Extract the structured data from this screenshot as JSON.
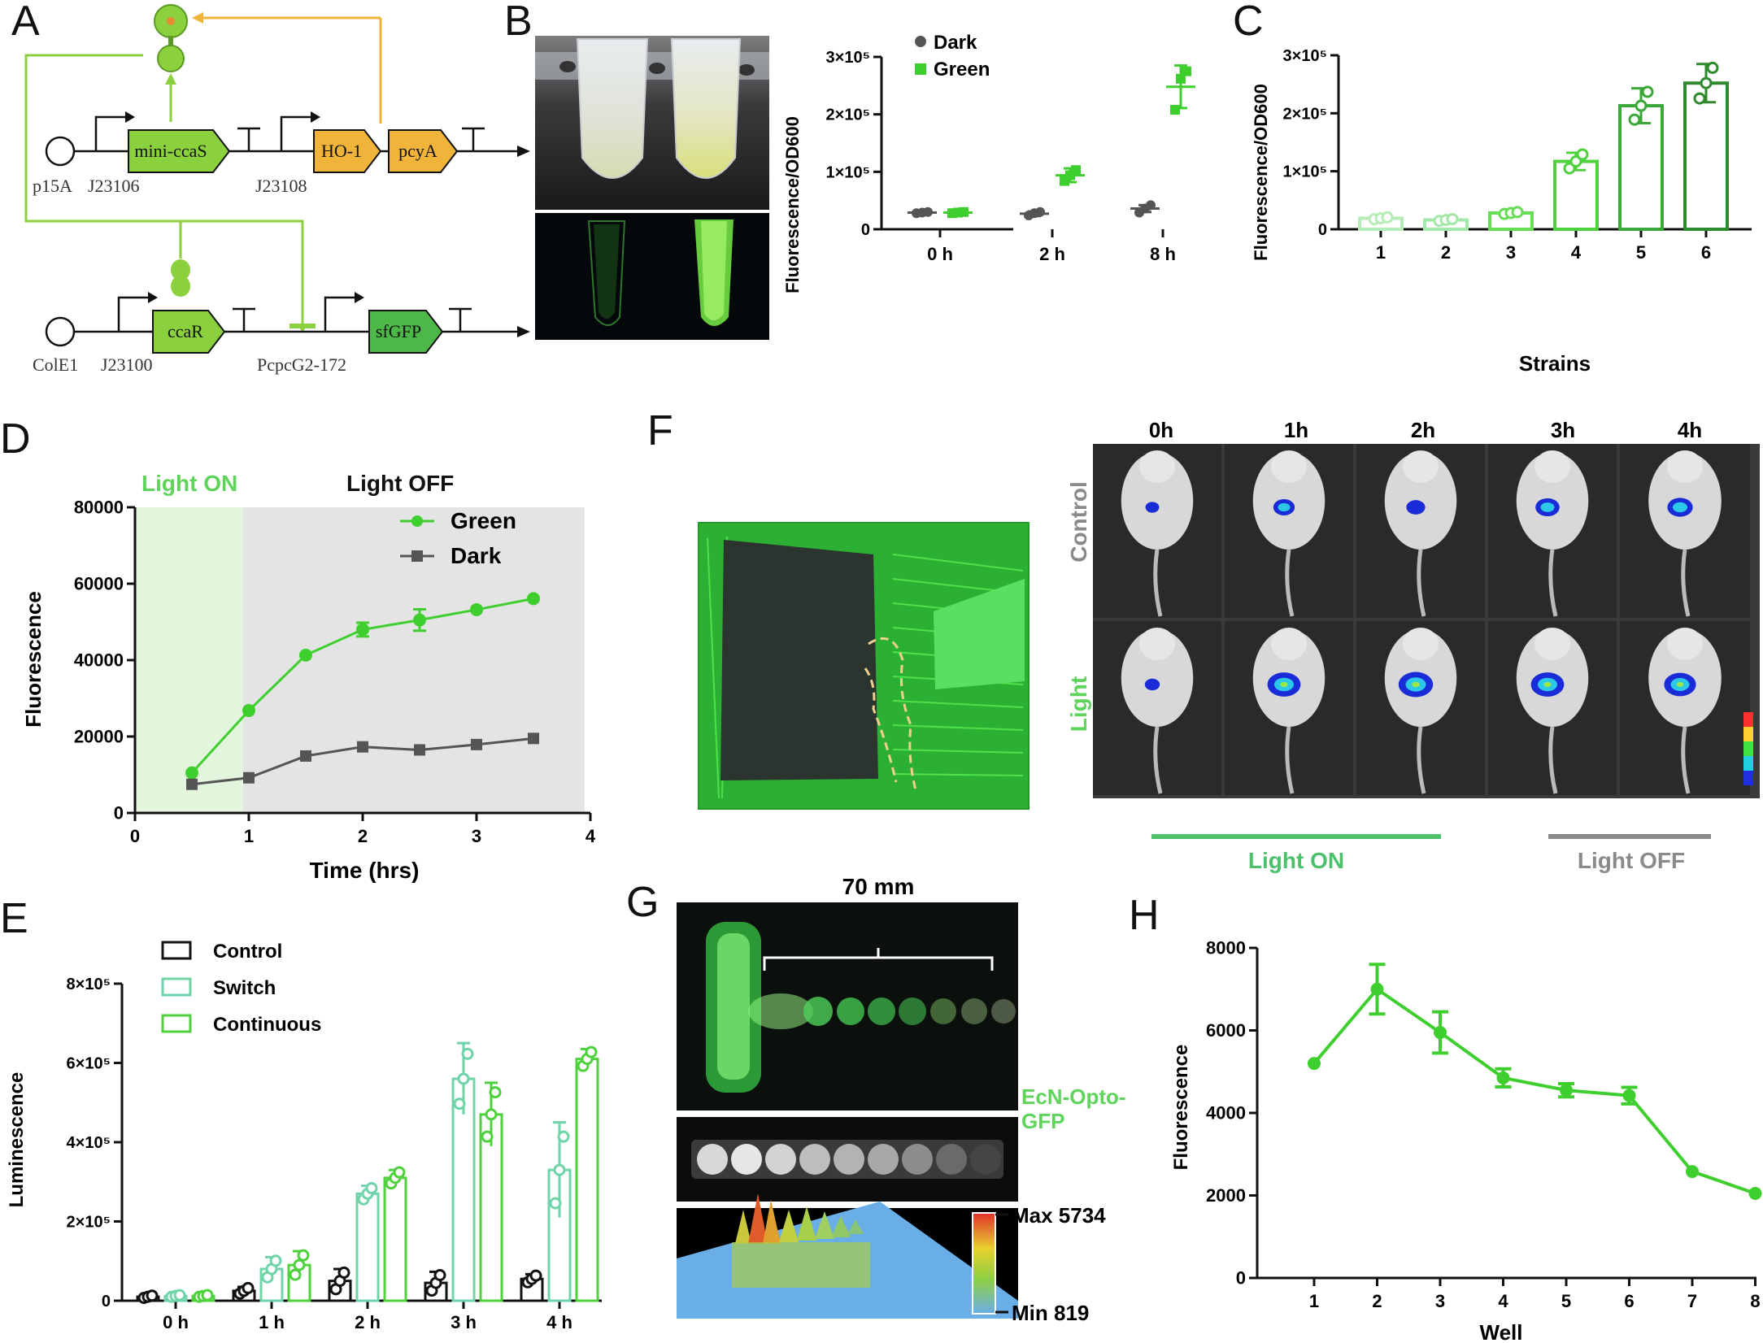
{
  "panels": {
    "A": {
      "letter": "A",
      "plasmid1": {
        "origin": "p15A",
        "promoter1": "J23106",
        "gene1": "mini-ccaS",
        "promoter2": "J23108",
        "gene2": "HO-1",
        "gene3": "pcyA"
      },
      "plasmid2": {
        "origin": "ColE1",
        "promoter1": "J23100",
        "gene1": "ccaR",
        "promoter2": "PcpcG2-172",
        "gene2": "sfGFP"
      },
      "colors": {
        "light_green": "#8bd13e",
        "orange": "#f0b43a",
        "dark_green": "#4cb847"
      }
    },
    "B": {
      "letter": "B",
      "chart_data": {
        "type": "scatter",
        "ylabel": "Fluorescence/OD600",
        "y_ticks": [
          "0",
          "1×10⁵",
          "2×10⁵",
          "3×10⁵"
        ],
        "ylim": [
          0,
          300000
        ],
        "categories": [
          "0 h",
          "2 h",
          "8 h"
        ],
        "series": [
          {
            "name": "Dark",
            "color": "#555555",
            "marker": "circle",
            "means": [
              29000,
              27000,
              36000
            ],
            "errors": [
              2000,
              4000,
              6000
            ],
            "points": [
              [
                28000,
                29000,
                30000
              ],
              [
                24000,
                28000,
                30000
              ],
              [
                29000,
                36000,
                42000
              ]
            ]
          },
          {
            "name": "Green",
            "color": "#3ecf2e",
            "marker": "square",
            "means": [
              29000,
              94000,
              248000
            ],
            "errors": [
              2000,
              12000,
              37000
            ],
            "points": [
              [
                28000,
                29000,
                30000
              ],
              [
                84000,
                94000,
                103000
              ],
              [
                208000,
                262000,
                275000
              ]
            ]
          }
        ]
      }
    },
    "C": {
      "letter": "C",
      "chart_data": {
        "type": "bar",
        "ylabel": "Fluorescence/OD600",
        "xlabel": "Strains",
        "y_ticks": [
          "0",
          "1×10⁵",
          "2×10⁵",
          "3×10⁵"
        ],
        "ylim": [
          0,
          300000
        ],
        "categories": [
          "1",
          "2",
          "3",
          "4",
          "5",
          "6"
        ],
        "values": [
          19000,
          16000,
          28000,
          117000,
          213000,
          252000
        ],
        "errors": [
          2000,
          2000,
          2000,
          15000,
          30000,
          33000
        ],
        "colors": [
          "#b6ecb8",
          "#a3e8a9",
          "#66dd54",
          "#4ed13d",
          "#3aa838",
          "#2e8a2c"
        ]
      }
    },
    "D": {
      "letter": "D",
      "light_on_label": "Light ON",
      "light_off_label": "Light OFF",
      "chart_data": {
        "type": "line",
        "xlabel": "Time (hrs)",
        "ylabel": "Fluorescence",
        "x_ticks": [
          "0",
          "1",
          "2",
          "3",
          "4"
        ],
        "y_ticks": [
          "0",
          "20000",
          "40000",
          "60000",
          "80000"
        ],
        "xlim": [
          0,
          4
        ],
        "ylim": [
          0,
          80000
        ],
        "x": [
          0.5,
          1,
          1.5,
          2,
          2.5,
          3,
          3.5
        ],
        "series": [
          {
            "name": "Green",
            "color": "#3ecf2e",
            "marker": "circle",
            "values": [
              10500,
              26800,
              41300,
              48000,
              50500,
              53200,
              56100
            ],
            "errors": [
              0,
              0,
              0,
              1800,
              2800,
              0,
              0
            ]
          },
          {
            "name": "Dark",
            "color": "#555555",
            "marker": "square",
            "values": [
              7500,
              9200,
              14900,
              17300,
              16500,
              17900,
              19500
            ],
            "errors": [
              0,
              0,
              0,
              0,
              0,
              0,
              0
            ]
          }
        ]
      }
    },
    "E": {
      "letter": "E",
      "chart_data": {
        "type": "bar",
        "ylabel": "Luminescence",
        "y_ticks": [
          "0",
          "2×10⁵",
          "4×10⁵",
          "6×10⁵",
          "8×10⁵"
        ],
        "ylim": [
          0,
          800000
        ],
        "categories": [
          "0 h",
          "1 h",
          "2 h",
          "3 h",
          "4 h"
        ],
        "series": [
          {
            "name": "Control",
            "color": "#111111",
            "values": [
              10000,
              25000,
              50000,
              45000,
              55000
            ],
            "errors": [
              4000,
              10000,
              30000,
              28000,
              12000
            ]
          },
          {
            "name": "Switch",
            "color": "#6fd4a8",
            "values": [
              12000,
              80000,
              270000,
              560000,
              330000
            ],
            "errors": [
              3000,
              30000,
              20000,
              90000,
              120000
            ]
          },
          {
            "name": "Continuous",
            "color": "#4ed13d",
            "values": [
              12000,
              90000,
              310000,
              470000,
              610000
            ],
            "errors": [
              3000,
              35000,
              20000,
              80000,
              25000
            ]
          }
        ]
      }
    },
    "F": {
      "letter": "F",
      "time_labels": [
        "0h",
        "1h",
        "2h",
        "3h",
        "4h"
      ],
      "row_labels": [
        "Control",
        "Light"
      ],
      "light_on_label": "Light ON",
      "light_off_label": "Light OFF"
    },
    "G": {
      "letter": "G",
      "scale_label": "70 mm",
      "strain_label_line1": "EcN-Opto-",
      "strain_label_line2": "GFP",
      "max_label": "Max 5734",
      "min_label": "Min 819"
    },
    "H": {
      "letter": "H",
      "chart_data": {
        "type": "line",
        "xlabel": "Well",
        "ylabel": "Fluorescence",
        "x_ticks": [
          "1",
          "2",
          "3",
          "4",
          "5",
          "6",
          "7",
          "8"
        ],
        "y_ticks": [
          "0",
          "2000",
          "4000",
          "6000",
          "8000"
        ],
        "ylim": [
          0,
          8000
        ],
        "x": [
          1,
          2,
          3,
          4,
          5,
          6,
          7,
          8
        ],
        "series": [
          {
            "name": "",
            "color": "#3ecf2e",
            "values": [
              5200,
              7000,
              5950,
              4850,
              4550,
              4420,
              2580,
              2050
            ],
            "errors": [
              0,
              600,
              500,
              220,
              160,
              200,
              0,
              0
            ]
          }
        ]
      }
    }
  }
}
